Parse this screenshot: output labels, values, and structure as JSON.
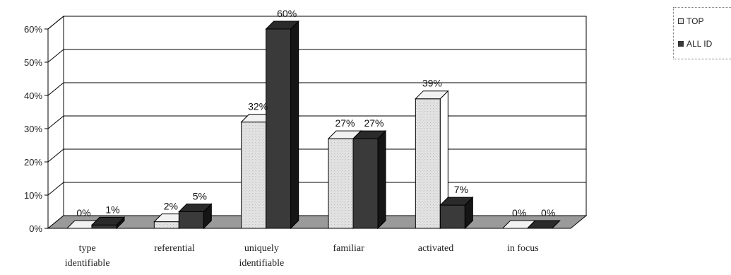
{
  "chart_data": {
    "type": "bar",
    "title": "",
    "xlabel": "",
    "ylabel": "",
    "categories": [
      [
        "type",
        "identifiable"
      ],
      [
        "referential"
      ],
      [
        "uniquely",
        "identifiable"
      ],
      [
        "familiar"
      ],
      [
        "activated"
      ],
      [
        "in focus"
      ]
    ],
    "series": [
      {
        "name": "TOP",
        "values": [
          0,
          2,
          32,
          27,
          39,
          0
        ],
        "labels": [
          "0%",
          "2%",
          "32%",
          "27%",
          "39%",
          "0%"
        ],
        "color": "#e2e2e2"
      },
      {
        "name": "ALL ID",
        "values": [
          1,
          5,
          60,
          27,
          7,
          0
        ],
        "labels": [
          "1%",
          "5%",
          "60%",
          "27%",
          "7%",
          "0%"
        ],
        "color": "#3a3a3a"
      }
    ],
    "ylim": [
      0,
      60
    ],
    "yticks": [
      "0%",
      "10%",
      "20%",
      "30%",
      "40%",
      "50%",
      "60%"
    ],
    "grid": true,
    "legend": "top-right",
    "style": "3d"
  }
}
